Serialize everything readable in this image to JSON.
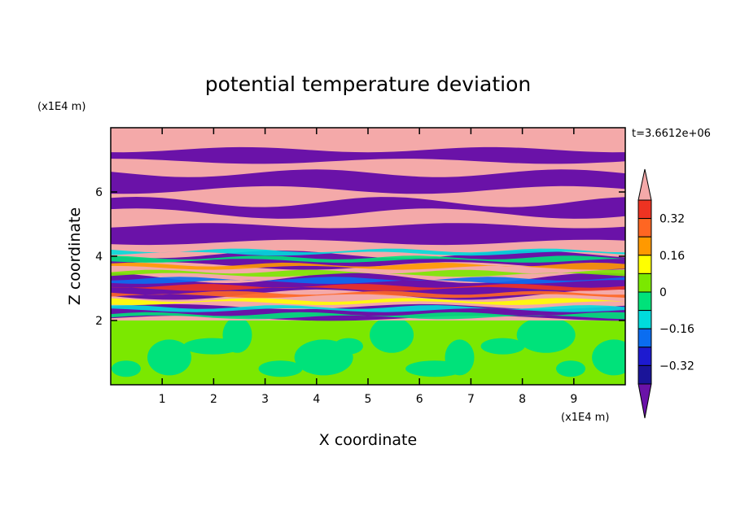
{
  "chart_data": {
    "type": "heatmap",
    "title": "potential temperature deviation",
    "xlabel": "X coordinate",
    "ylabel": "Z coordinate",
    "x_unit": "(x1E4 m)",
    "y_unit": "(x1E4 m)",
    "time_label": "t=3.6612e+06",
    "xlim": [
      0,
      10
    ],
    "ylim": [
      0,
      8
    ],
    "x_ticks": [
      "1",
      "2",
      "3",
      "4",
      "5",
      "6",
      "7",
      "8",
      "9"
    ],
    "y_ticks": [
      "2",
      "4",
      "6"
    ],
    "colorbar": {
      "levels": [
        -0.4,
        -0.32,
        -0.24,
        -0.16,
        -0.08,
        0,
        0.08,
        0.16,
        0.24,
        0.32,
        0.4
      ],
      "tick_labels": [
        "0.32",
        "0.16",
        "0",
        "−0.16",
        "−0.32"
      ],
      "colors_top_to_bottom": [
        "#f4a9a9",
        "#ee3322",
        "#ff6622",
        "#ff9900",
        "#ffff00",
        "#7be800",
        "#00e27a",
        "#00dcdc",
        "#0b6df0",
        "#1d1ad0",
        "#1a1499",
        "#6a12a8"
      ]
    },
    "field": {
      "lower_layer": {
        "z_range": [
          0,
          2
        ],
        "dominant_values": [
          0.04,
          -0.04
        ]
      },
      "upper_layer": {
        "z_range": [
          2,
          8
        ],
        "dominant_values": [
          0.4,
          -0.4
        ]
      }
    }
  }
}
